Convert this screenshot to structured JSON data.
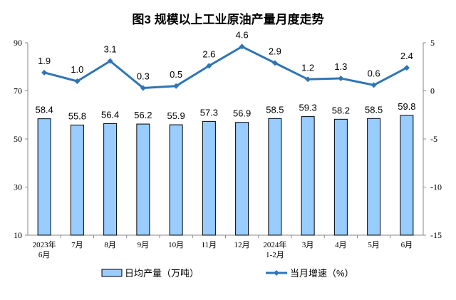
{
  "chart_data": {
    "type": "bar+line",
    "title": "图3  规模以上工业原油产量月度走势",
    "categories": [
      [
        "2023年",
        "6月"
      ],
      [
        "7月"
      ],
      [
        "8月"
      ],
      [
        "9月"
      ],
      [
        "10月"
      ],
      [
        "11月"
      ],
      [
        "12月"
      ],
      [
        "2024年",
        "1-2月"
      ],
      [
        "3月"
      ],
      [
        "4月"
      ],
      [
        "5月"
      ],
      [
        "6月"
      ]
    ],
    "series": [
      {
        "name": "日均产量（万吨）",
        "type": "bar",
        "axis": "left",
        "values": [
          58.4,
          55.8,
          56.4,
          56.2,
          55.9,
          57.3,
          56.9,
          58.5,
          59.3,
          58.2,
          58.5,
          59.8
        ],
        "labels": [
          "58.4",
          "55.8",
          "56.4",
          "56.2",
          "55.9",
          "57.3",
          "56.9",
          "58.5",
          "59.3",
          "58.2",
          "58.5",
          "59.8"
        ],
        "color": "#99ccff"
      },
      {
        "name": "当月增速（%）",
        "type": "line",
        "axis": "right",
        "values": [
          1.9,
          1.0,
          3.1,
          0.3,
          0.5,
          2.6,
          4.6,
          2.9,
          1.2,
          1.3,
          0.6,
          2.4
        ],
        "labels": [
          "1.9",
          "1.0",
          "3.1",
          "0.3",
          "0.5",
          "2.6",
          "4.6",
          "2.9",
          "1.2",
          "1.3",
          "0.6",
          "2.4"
        ],
        "color": "#2e75b6"
      }
    ],
    "y_left": {
      "range": [
        10,
        90
      ],
      "ticks": [
        "10",
        "30",
        "50",
        "70",
        "90"
      ]
    },
    "y_right": {
      "range": [
        -15,
        5
      ],
      "ticks": [
        "-15",
        "-10",
        "-5",
        "0",
        "5"
      ]
    },
    "grid": false,
    "legend_placement": "bottom"
  }
}
